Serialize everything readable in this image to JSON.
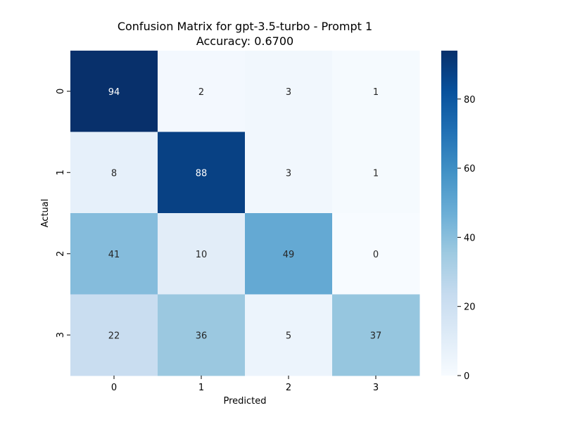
{
  "chart_data": {
    "type": "heatmap",
    "title": "Confusion Matrix for gpt-3.5-turbo - Prompt 1",
    "subtitle": "Accuracy: 0.6700",
    "xlabel": "Predicted",
    "ylabel": "Actual",
    "x_categories": [
      "0",
      "1",
      "2",
      "3"
    ],
    "y_categories": [
      "0",
      "1",
      "2",
      "3"
    ],
    "values": [
      [
        94,
        2,
        3,
        1
      ],
      [
        8,
        88,
        3,
        1
      ],
      [
        41,
        10,
        49,
        0
      ],
      [
        22,
        36,
        5,
        37
      ]
    ],
    "colorbar": {
      "min": 0,
      "max": 94,
      "ticks": [
        0,
        20,
        40,
        60,
        80
      ],
      "colormap": "Blues"
    },
    "colors": {
      "low": "#f7fbff",
      "high": "#08306b",
      "text_dark": "#262626",
      "text_light": "#ffffff"
    }
  }
}
